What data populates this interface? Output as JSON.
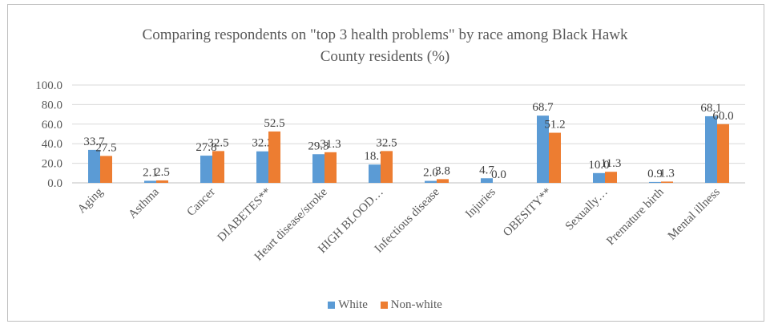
{
  "chart_data": {
    "type": "bar",
    "title_line1": "Comparing respondents on \"top 3 health problems\" by race among Black Hawk",
    "title_line2": "County residents (%)",
    "categories": [
      "Aging",
      "Asthma",
      "Cancer",
      "DIABETES**",
      "Heart disease/stroke",
      "HIGH BLOOD…",
      "Infectious disease",
      "Injuries",
      "OBESITY**",
      "Sexually…",
      "Premature birth",
      "Mental illness"
    ],
    "series": [
      {
        "name": "White",
        "color": "#5b9bd5",
        "values": [
          33.7,
          2.1,
          27.8,
          32.2,
          29.3,
          18.7,
          2.0,
          4.7,
          68.7,
          10.0,
          0.9,
          68.1
        ]
      },
      {
        "name": "Non-white",
        "color": "#ed7d31",
        "values": [
          27.5,
          2.5,
          32.5,
          52.5,
          31.3,
          32.5,
          3.8,
          0.0,
          51.2,
          11.3,
          1.3,
          60.0
        ]
      }
    ],
    "yticks": [
      "0.0",
      "20.0",
      "40.0",
      "60.0",
      "80.0",
      "100.0"
    ],
    "ylim": [
      0,
      100
    ],
    "grid": true,
    "legend_position": "bottom"
  }
}
